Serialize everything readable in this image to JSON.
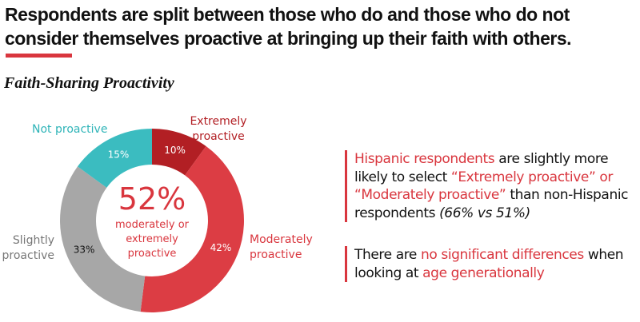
{
  "headline": {
    "line1": "Respondents are split between those who do and those who do not",
    "line2": "consider themselves proactive at bringing up their faith with others."
  },
  "subtitle": "Faith-Sharing Proactivity",
  "colors": {
    "accent": "#d9363e",
    "extremely": "#b21f24",
    "moderately": "#dc3d44",
    "slightly": "#a7a7a7",
    "not": "#3bbcc0"
  },
  "chart_data": {
    "type": "pie",
    "variant": "donut",
    "title": "Faith-Sharing Proactivity",
    "slices": [
      {
        "label": "Extremely proactive",
        "label_lines": [
          "Extremely",
          "proactive"
        ],
        "value": 10,
        "value_label": "10%",
        "color": "#b21f24",
        "label_color": "#b21f24",
        "value_text_color": "#ffffff"
      },
      {
        "label": "Moderately proactive",
        "label_lines": [
          "Moderately",
          "proactive"
        ],
        "value": 42,
        "value_label": "42%",
        "color": "#dc3d44",
        "label_color": "#d9363e",
        "value_text_color": "#ffffff"
      },
      {
        "label": "Slightly proactive",
        "label_lines": [
          "Slightly",
          "proactive"
        ],
        "value": 33,
        "value_label": "33%",
        "color": "#a7a7a7",
        "label_color": "#777777",
        "value_text_color": "#111111"
      },
      {
        "label": "Not proactive",
        "label_lines": [
          "Not proactive"
        ],
        "value": 15,
        "value_label": "15%",
        "color": "#3bbcc0",
        "label_color": "#2fb4b8",
        "value_text_color": "#ffffff"
      }
    ],
    "center": {
      "value": "52%",
      "lines": [
        "moderately or",
        "extremely",
        "proactive"
      ]
    }
  },
  "callouts": [
    {
      "parts": [
        {
          "text": "Hispanic respondents",
          "style": "hl"
        },
        {
          "text": " are slightly more likely to select ",
          "style": ""
        },
        {
          "text": "“Extremely proactive” or “Moderately proactive”",
          "style": "hl"
        },
        {
          "text": " than non-Hispanic respondents ",
          "style": ""
        },
        {
          "text": "(66% vs 51%)",
          "style": "it"
        }
      ]
    },
    {
      "parts": [
        {
          "text": "There are ",
          "style": ""
        },
        {
          "text": "no significant differences",
          "style": "hl"
        },
        {
          "text": " when looking at ",
          "style": ""
        },
        {
          "text": "age generationally",
          "style": "hl"
        }
      ]
    }
  ]
}
